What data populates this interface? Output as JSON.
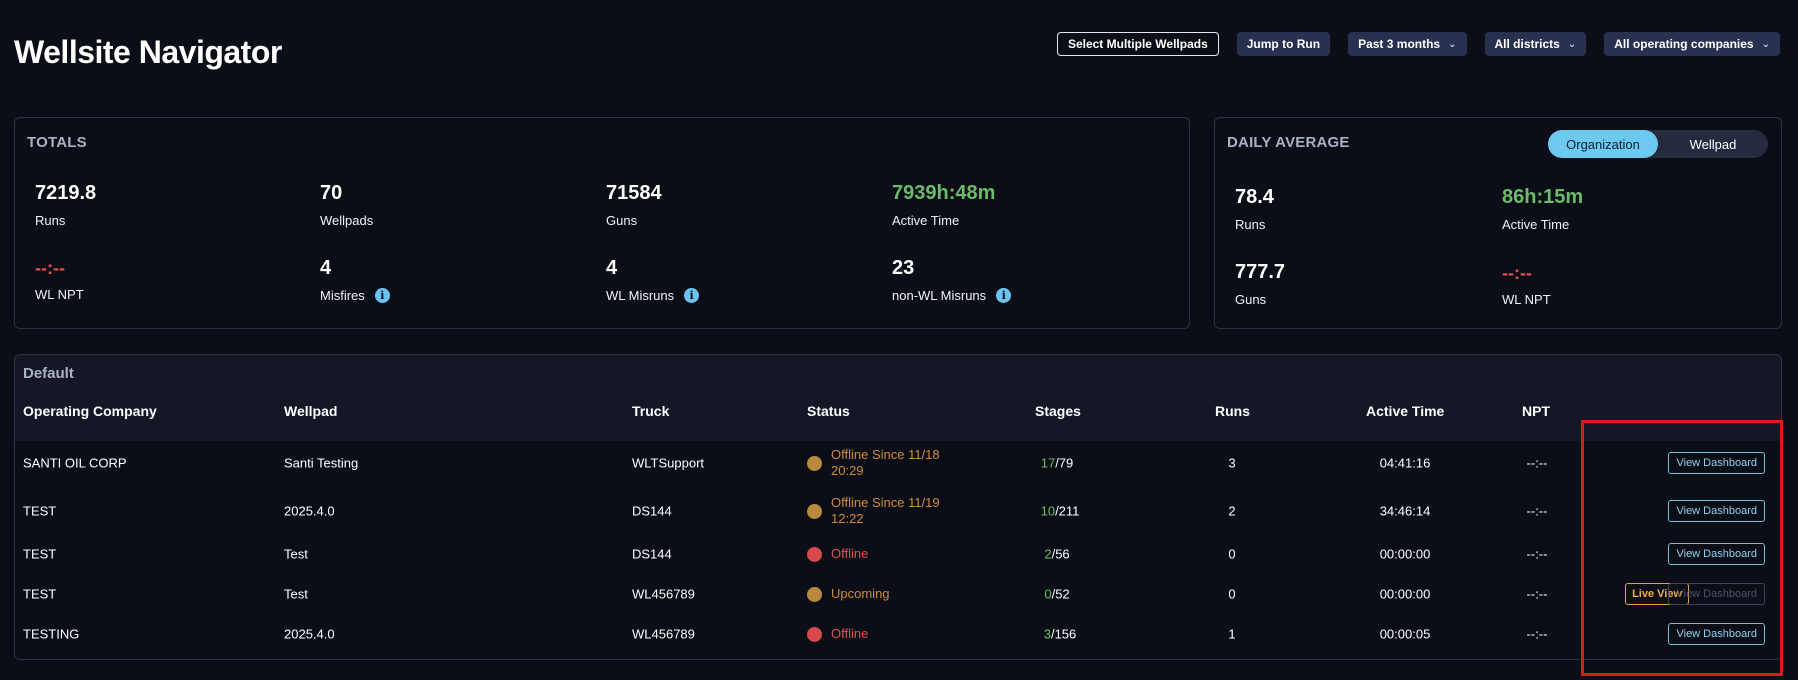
{
  "header": {
    "title": "Wellsite Navigator",
    "select_multiple": "Select Multiple Wellpads",
    "jump_to_run": "Jump to Run",
    "period": "Past 3 months",
    "districts": "All districts",
    "companies": "All operating companies"
  },
  "totals": {
    "title": "TOTALS",
    "stats": [
      {
        "value": "7219.8",
        "label": "Runs"
      },
      {
        "value": "70",
        "label": "Wellpads"
      },
      {
        "value": "71584",
        "label": "Guns"
      },
      {
        "value": "7939h:48m",
        "label": "Active Time"
      },
      {
        "value": "--:--",
        "label": "WL NPT"
      },
      {
        "value": "4",
        "label": "Misfires"
      },
      {
        "value": "4",
        "label": "WL Misruns"
      },
      {
        "value": "23",
        "label": "non-WL Misruns"
      }
    ],
    "info_glyph": "i"
  },
  "daily": {
    "title": "DAILY AVERAGE",
    "toggle": [
      "Organization",
      "Wellpad"
    ],
    "stats": [
      {
        "value": "78.4",
        "label": "Runs"
      },
      {
        "value": "86h:15m",
        "label": "Active Time"
      },
      {
        "value": "777.7",
        "label": "Guns"
      },
      {
        "value": "--:--",
        "label": "WL NPT"
      }
    ]
  },
  "table": {
    "group": "Default",
    "columns": [
      "Operating Company",
      "Wellpad",
      "Truck",
      "Status",
      "Stages",
      "Runs",
      "Active Time",
      "NPT"
    ],
    "rows": [
      {
        "company": "SANTI OIL CORP",
        "wellpad": "Santi Testing",
        "truck": "WLTSupport",
        "status": "Offline Since 11/18 20:29",
        "stages_done": "17",
        "stages_total": "/79",
        "runs": "3",
        "active": "04:41:16",
        "npt": "--:--"
      },
      {
        "company": "TEST",
        "wellpad": "2025.4.0",
        "truck": "DS144",
        "status": "Offline Since 11/19 12:22",
        "stages_done": "10",
        "stages_total": "/211",
        "runs": "2",
        "active": "34:46:14",
        "npt": "--:--"
      },
      {
        "company": "TEST",
        "wellpad": "Test",
        "truck": "DS144",
        "status": "Offline",
        "stages_done": "2",
        "stages_total": "/56",
        "runs": "0",
        "active": "00:00:00",
        "npt": "--:--"
      },
      {
        "company": "TEST",
        "wellpad": "Test",
        "truck": "WL456789",
        "status": "Upcoming",
        "stages_done": "0",
        "stages_total": "/52",
        "runs": "0",
        "active": "00:00:00",
        "npt": "--:--"
      },
      {
        "company": "TESTING",
        "wellpad": "2025.4.0",
        "truck": "WL456789",
        "status": "Offline",
        "stages_done": "3",
        "stages_total": "/156",
        "runs": "1",
        "active": "00:00:05",
        "npt": "--:--"
      }
    ],
    "view_dashboard": "View Dashboard",
    "live_view": "Live View"
  },
  "colors": {
    "accent": "#6cc9f0",
    "positive": "#6cba6a",
    "negative": "#e05151",
    "warning": "#d18a3c",
    "highlight": "#e01818"
  }
}
